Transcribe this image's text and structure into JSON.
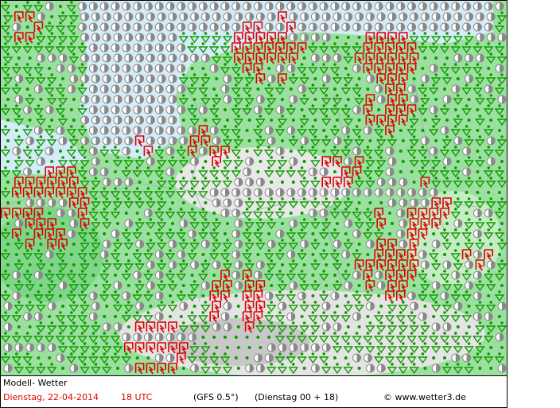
{
  "footer": {
    "model": "Modell- Wetter",
    "date": "Dienstag, 22-04-2014",
    "time": "18 UTC",
    "run": "(GFS 0.5°)",
    "step": "(Dienstag 00 + 18)",
    "credit": "© www.wetter3.de"
  }
}
